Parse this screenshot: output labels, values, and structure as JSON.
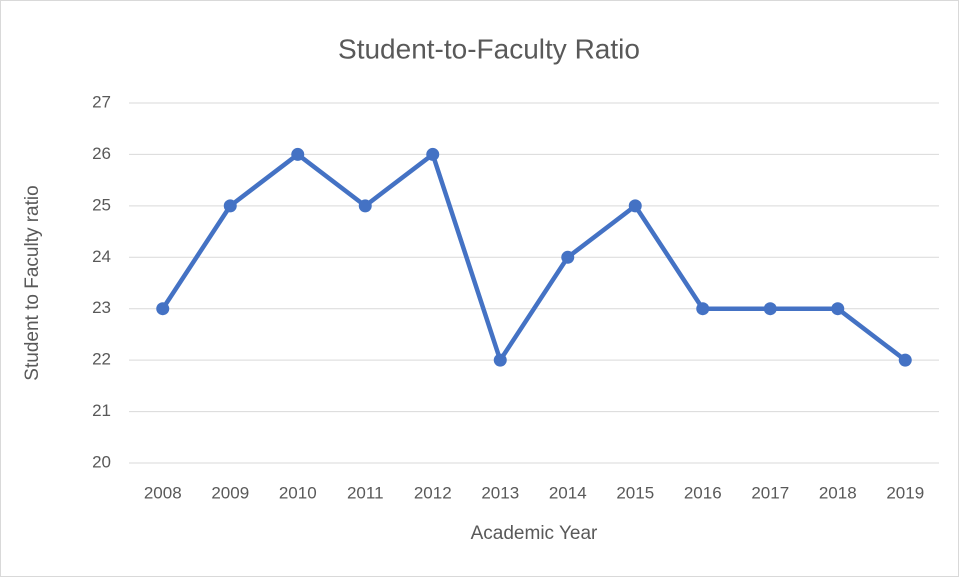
{
  "chart_data": {
    "type": "line",
    "title": "Student-to-Faculty Ratio",
    "x_label": "Academic Year",
    "y_label": "Student to Faculty ratio",
    "categories": [
      "2008",
      "2009",
      "2010",
      "2011",
      "2012",
      "2013",
      "2014",
      "2015",
      "2016",
      "2017",
      "2018",
      "2019"
    ],
    "series": [
      {
        "name": "Student to Faculty ratio",
        "color": "#4472c4",
        "values": [
          23,
          25,
          26,
          25,
          26,
          22,
          24,
          25,
          23,
          23,
          23,
          22
        ]
      }
    ],
    "ylim": [
      20,
      27
    ],
    "yticks": [
      20,
      21,
      22,
      23,
      24,
      25,
      26,
      27
    ],
    "grid": true
  }
}
